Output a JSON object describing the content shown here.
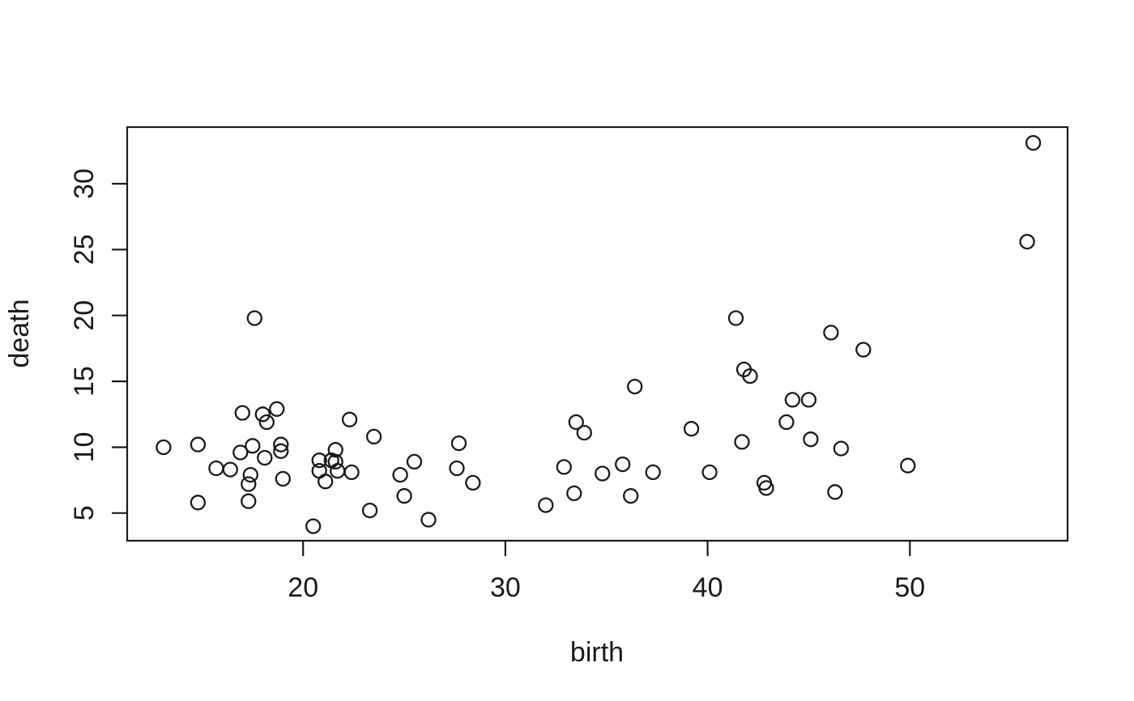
{
  "figure": {
    "background": "#ffffff",
    "foreground": "#1a1a1a"
  },
  "chart_data": {
    "type": "scatter",
    "title": "",
    "xlabel": "birth",
    "ylabel": "death",
    "xlim": [
      11.3,
      57.8
    ],
    "ylim": [
      2.9,
      34.3
    ],
    "x_ticks": [
      20,
      30,
      40,
      50
    ],
    "y_ticks": [
      5,
      10,
      15,
      20,
      25,
      30
    ],
    "grid": false,
    "legend": "none",
    "marker": "open-circle",
    "marker_color": "#1a1a1a",
    "points": [
      [
        13.1,
        10.0
      ],
      [
        14.8,
        10.2
      ],
      [
        14.8,
        5.8
      ],
      [
        15.7,
        8.4
      ],
      [
        16.4,
        8.3
      ],
      [
        16.9,
        9.6
      ],
      [
        17.0,
        12.6
      ],
      [
        17.5,
        10.1
      ],
      [
        17.4,
        7.9
      ],
      [
        17.3,
        7.2
      ],
      [
        17.3,
        5.9
      ],
      [
        17.6,
        19.8
      ],
      [
        18.0,
        12.5
      ],
      [
        18.2,
        11.9
      ],
      [
        18.1,
        9.2
      ],
      [
        18.7,
        12.9
      ],
      [
        18.9,
        10.2
      ],
      [
        18.9,
        9.7
      ],
      [
        19.0,
        7.6
      ],
      [
        20.5,
        4.0
      ],
      [
        20.8,
        9.0
      ],
      [
        20.8,
        8.2
      ],
      [
        21.1,
        7.4
      ],
      [
        21.4,
        9.0
      ],
      [
        21.6,
        8.9
      ],
      [
        21.6,
        9.8
      ],
      [
        21.7,
        8.2
      ],
      [
        22.4,
        8.1
      ],
      [
        22.3,
        12.1
      ],
      [
        23.5,
        10.8
      ],
      [
        23.3,
        5.2
      ],
      [
        24.8,
        7.9
      ],
      [
        25.5,
        8.9
      ],
      [
        25.0,
        6.3
      ],
      [
        26.2,
        4.5
      ],
      [
        27.7,
        10.3
      ],
      [
        27.6,
        8.4
      ],
      [
        28.4,
        7.3
      ],
      [
        32.0,
        5.6
      ],
      [
        32.9,
        8.5
      ],
      [
        33.5,
        11.9
      ],
      [
        33.9,
        11.1
      ],
      [
        33.4,
        6.5
      ],
      [
        34.8,
        8.0
      ],
      [
        35.8,
        8.7
      ],
      [
        36.4,
        14.6
      ],
      [
        36.2,
        6.3
      ],
      [
        37.3,
        8.1
      ],
      [
        39.2,
        11.4
      ],
      [
        40.1,
        8.1
      ],
      [
        41.4,
        19.8
      ],
      [
        41.8,
        15.9
      ],
      [
        42.1,
        15.4
      ],
      [
        41.7,
        10.4
      ],
      [
        42.8,
        7.3
      ],
      [
        42.9,
        6.9
      ],
      [
        43.9,
        11.9
      ],
      [
        44.2,
        13.6
      ],
      [
        45.0,
        13.6
      ],
      [
        45.1,
        10.6
      ],
      [
        46.1,
        18.7
      ],
      [
        46.6,
        9.9
      ],
      [
        46.3,
        6.6
      ],
      [
        47.7,
        17.4
      ],
      [
        49.9,
        8.6
      ],
      [
        55.8,
        25.6
      ],
      [
        56.1,
        33.1
      ]
    ]
  }
}
